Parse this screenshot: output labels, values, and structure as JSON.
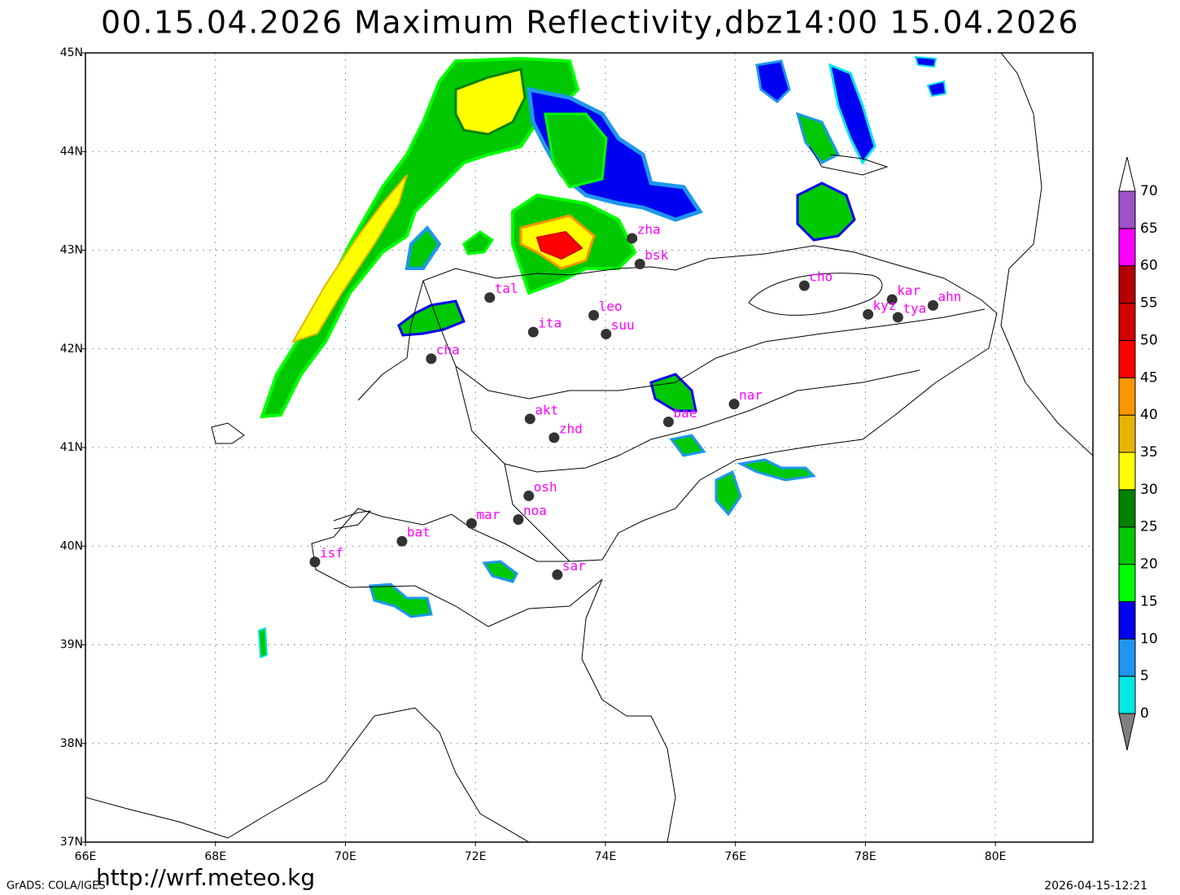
{
  "title": "00.15.04.2026  Maximum  Reflectivity,dbz14:00  15.04.2026",
  "map": {
    "xlim": [
      66,
      81.5
    ],
    "ylim": [
      37,
      45
    ],
    "xticks": [
      {
        "value": 66,
        "label": "66E"
      },
      {
        "value": 68,
        "label": "68E"
      },
      {
        "value": 70,
        "label": "70E"
      },
      {
        "value": 72,
        "label": "72E"
      },
      {
        "value": 74,
        "label": "74E"
      },
      {
        "value": 76,
        "label": "76E"
      },
      {
        "value": 78,
        "label": "78E"
      },
      {
        "value": 80,
        "label": "80E"
      }
    ],
    "yticks": [
      {
        "value": 37,
        "label": "37N"
      },
      {
        "value": 38,
        "label": "38N"
      },
      {
        "value": 39,
        "label": "39N"
      },
      {
        "value": 40,
        "label": "40N"
      },
      {
        "value": 41,
        "label": "41N"
      },
      {
        "value": 42,
        "label": "42N"
      },
      {
        "value": 43,
        "label": "43N"
      },
      {
        "value": 44,
        "label": "44N"
      },
      {
        "value": 45,
        "label": "45N"
      }
    ],
    "grid": true
  },
  "stations": [
    {
      "label": "zha",
      "lon": 74.41,
      "lat": 43.12
    },
    {
      "label": "bsk",
      "lon": 74.53,
      "lat": 42.86
    },
    {
      "label": "tal",
      "lon": 72.22,
      "lat": 42.52
    },
    {
      "label": "leo",
      "lon": 73.82,
      "lat": 42.34
    },
    {
      "label": "ita",
      "lon": 72.89,
      "lat": 42.17
    },
    {
      "label": "suu",
      "lon": 74.01,
      "lat": 42.15
    },
    {
      "label": "cha",
      "lon": 71.32,
      "lat": 41.9
    },
    {
      "label": "cho",
      "lon": 77.06,
      "lat": 42.64
    },
    {
      "label": "kar",
      "lon": 78.41,
      "lat": 42.5
    },
    {
      "label": "kyz",
      "lon": 78.04,
      "lat": 42.35
    },
    {
      "label": "tya",
      "lon": 78.5,
      "lat": 42.32
    },
    {
      "label": "ahn",
      "lon": 79.04,
      "lat": 42.44
    },
    {
      "label": "nar",
      "lon": 75.98,
      "lat": 41.44
    },
    {
      "label": "bae",
      "lon": 74.97,
      "lat": 41.26
    },
    {
      "label": "akt",
      "lon": 72.84,
      "lat": 41.29
    },
    {
      "label": "zhd",
      "lon": 73.21,
      "lat": 41.1
    },
    {
      "label": "osh",
      "lon": 72.82,
      "lat": 40.51
    },
    {
      "label": "mar",
      "lon": 71.94,
      "lat": 40.23
    },
    {
      "label": "noa",
      "lon": 72.66,
      "lat": 40.27
    },
    {
      "label": "bat",
      "lon": 70.87,
      "lat": 40.05
    },
    {
      "label": "isf",
      "lon": 69.53,
      "lat": 39.84
    },
    {
      "label": "sar",
      "lon": 73.26,
      "lat": 39.71
    }
  ],
  "colorbar": {
    "levels": [
      0,
      5,
      10,
      15,
      20,
      25,
      30,
      35,
      40,
      45,
      50,
      55,
      60,
      65,
      70
    ],
    "colors": [
      "#808080",
      "#00e6e6",
      "#1e96f0",
      "#0000f0",
      "#00ff00",
      "#00c800",
      "#008200",
      "#ffff00",
      "#e6b400",
      "#ff9600",
      "#ff0000",
      "#d20000",
      "#b40000",
      "#ff00ff",
      "#a050c8",
      "#ffffff"
    ]
  },
  "footer": {
    "left": "GrADS: COLA/IGES",
    "url": "http://wrf.meteo.kg",
    "timestamp": "2026-04-15-12:21"
  }
}
